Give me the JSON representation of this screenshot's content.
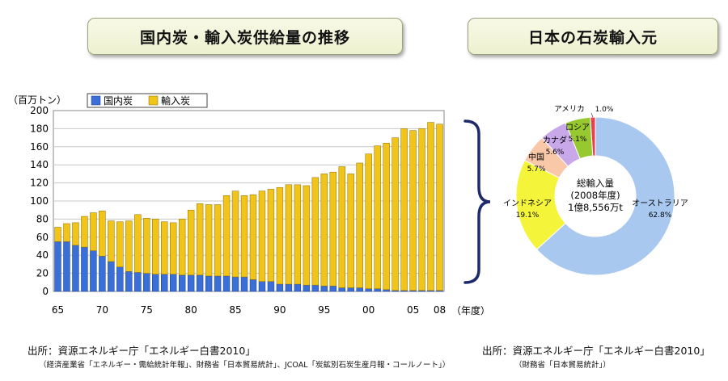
{
  "left_title": "国内炭・輸入炭供給量の推移",
  "right_title": "日本の石炭輸入元",
  "left_source": {
    "line1": "出所：資源エネルギー庁「エネルギー白書2010」",
    "line2": "（経済産業省「エネルギー・需給統計年報」、財務省「日本貿易統計」、JCOAL「炭鉱別石炭生産月報・コールノート」）"
  },
  "right_source": {
    "line1": "出所：資源エネルギー庁「エネルギー白書2010」",
    "line2": "（財務省「日本貿易統計」）"
  },
  "colors": {
    "domestic": "#3a6fd8",
    "imported": "#f0c419",
    "brace": "#1f2a6b",
    "australia": "#a8c8f0",
    "indonesia": "#f4f43a",
    "china": "#f8c8a8",
    "canada": "#c8a8e8",
    "russia": "#98c830",
    "usa": "#e84050"
  },
  "chart_data": [
    {
      "type": "bar",
      "stacked": true,
      "title": "国内炭・輸入炭供給量の推移",
      "ylabel": "（百万トン）",
      "xlabel": "（年度）",
      "ylim": [
        0,
        200
      ],
      "yticks": [
        "0",
        "20",
        "40",
        "60",
        "80",
        "100",
        "120",
        "140",
        "160",
        "180",
        "200"
      ],
      "x_tick_labels": [
        "65",
        "70",
        "75",
        "80",
        "85",
        "90",
        "95",
        "00",
        "05",
        "08"
      ],
      "x_tick_index": [
        0,
        5,
        10,
        15,
        20,
        25,
        30,
        35,
        40,
        43
      ],
      "grid": true,
      "legend_position": "top-left",
      "categories": [
        "1965",
        "1966",
        "1967",
        "1968",
        "1969",
        "1970",
        "1971",
        "1972",
        "1973",
        "1974",
        "1975",
        "1976",
        "1977",
        "1978",
        "1979",
        "1980",
        "1981",
        "1982",
        "1983",
        "1984",
        "1985",
        "1986",
        "1987",
        "1988",
        "1989",
        "1990",
        "1991",
        "1992",
        "1993",
        "1994",
        "1995",
        "1996",
        "1997",
        "1998",
        "1999",
        "2000",
        "2001",
        "2002",
        "2003",
        "2004",
        "2005",
        "2006",
        "2007",
        "2008"
      ],
      "series": [
        {
          "name": "国内炭",
          "values": [
            55,
            55,
            51,
            49,
            45,
            39,
            33,
            27,
            22,
            21,
            20,
            19,
            19,
            19,
            18,
            18,
            18,
            17,
            17,
            17,
            16,
            16,
            13,
            11,
            11,
            8,
            8,
            8,
            7,
            7,
            6,
            6,
            4,
            4,
            4,
            3,
            3,
            2,
            1,
            1,
            1,
            1,
            1,
            1
          ]
        },
        {
          "name": "輸入炭",
          "values": [
            16,
            20,
            25,
            34,
            42,
            50,
            45,
            50,
            56,
            64,
            61,
            61,
            58,
            57,
            62,
            72,
            79,
            79,
            79,
            89,
            95,
            90,
            94,
            100,
            102,
            107,
            110,
            110,
            110,
            119,
            124,
            126,
            134,
            126,
            138,
            149,
            158,
            162,
            169,
            179,
            177,
            179,
            186,
            184
          ]
        }
      ]
    },
    {
      "type": "pie",
      "donut": true,
      "title": "日本の石炭輸入元",
      "center_text": [
        "総輸入量",
        "(2008年度)",
        "1億8,556万t"
      ],
      "slices": [
        {
          "label": "オーストラリア",
          "value": 62.8,
          "display": "62.8%"
        },
        {
          "label": "インドネシア",
          "value": 19.1,
          "display": "19.1%"
        },
        {
          "label": "中国",
          "value": 5.7,
          "display": "5.7%"
        },
        {
          "label": "カナダ",
          "value": 5.6,
          "display": "5.6%"
        },
        {
          "label": "ロシア",
          "value": 5.1,
          "display": "5.1%"
        },
        {
          "label": "アメリカ",
          "value": 1.0,
          "display": "1.0%"
        }
      ]
    }
  ]
}
